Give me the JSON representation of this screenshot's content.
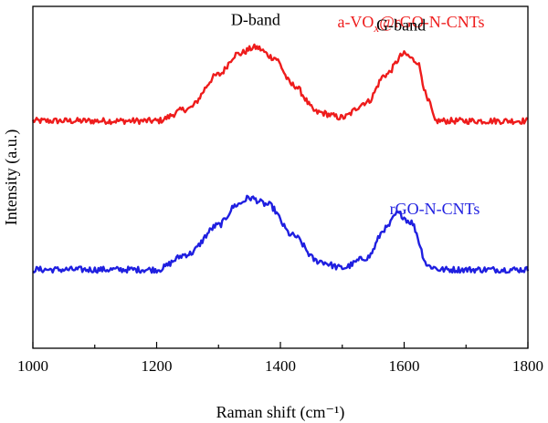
{
  "chart_data": {
    "type": "line",
    "title": "",
    "xlabel": "Raman shift (cm⁻¹)",
    "ylabel": "Intensity (a.u.)",
    "xlim": [
      1000,
      1800
    ],
    "ylim": [
      0,
      1
    ],
    "x_ticks": [
      1000,
      1200,
      1400,
      1600,
      1800
    ],
    "x_tick_labels": [
      "1000",
      "1200",
      "1400",
      "1600",
      "1800"
    ],
    "y_ticks_shown": false,
    "grid": false,
    "series": [
      {
        "name": "a-VOₓ@rGO-N-CNTs",
        "label_parts": {
          "pre": "a-VO",
          "sub": "x",
          "post": "@rGO-N-CNTs"
        },
        "color": "#ee1c1c",
        "x": [
          1000,
          1100,
          1200,
          1250,
          1300,
          1330,
          1360,
          1390,
          1420,
          1460,
          1500,
          1540,
          1570,
          1600,
          1620,
          1640,
          1650,
          1700,
          1800
        ],
        "y": [
          0.665,
          0.665,
          0.665,
          0.7,
          0.8,
          0.86,
          0.88,
          0.85,
          0.77,
          0.69,
          0.675,
          0.72,
          0.8,
          0.86,
          0.84,
          0.72,
          0.665,
          0.665,
          0.665
        ]
      },
      {
        "name": "rGO-N-CNTs",
        "color": "#1f1fe0",
        "x": [
          1000,
          1100,
          1200,
          1250,
          1300,
          1330,
          1350,
          1380,
          1420,
          1460,
          1500,
          1540,
          1570,
          1590,
          1610,
          1640,
          1660,
          1700,
          1800
        ],
        "y": [
          0.23,
          0.23,
          0.23,
          0.275,
          0.36,
          0.42,
          0.44,
          0.42,
          0.33,
          0.255,
          0.235,
          0.265,
          0.35,
          0.395,
          0.37,
          0.24,
          0.23,
          0.23,
          0.23
        ]
      }
    ],
    "annotations": [
      {
        "text": "D-band",
        "x": 1360,
        "y": 0.945
      },
      {
        "text": "G-band",
        "x": 1595,
        "y": 0.93
      }
    ],
    "legend": "inline labels above each trace"
  }
}
